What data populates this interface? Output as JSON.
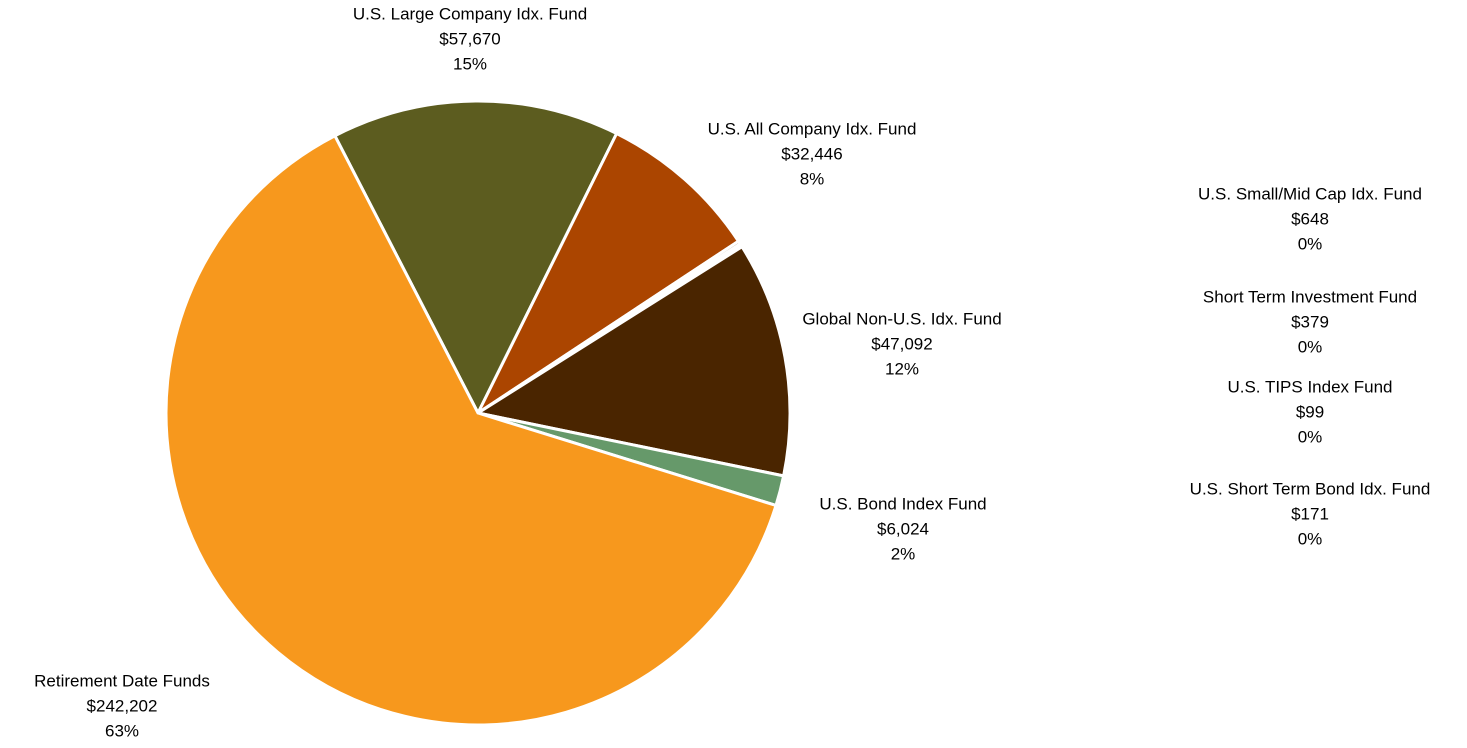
{
  "chart_data": {
    "type": "pie",
    "categories": [
      "U.S. Large Company Idx. Fund",
      "U.S. All Company Idx. Fund",
      "U.S. Small/Mid Cap Idx. Fund",
      "Short Term Investment Fund",
      "U.S. TIPS Index Fund",
      "U.S. Short Term Bond Idx. Fund",
      "Global Non-U.S. Idx. Fund",
      "U.S. Bond Index Fund",
      "Retirement Date Funds"
    ],
    "values": [
      57670,
      32446,
      648,
      379,
      99,
      171,
      47092,
      6024,
      242202
    ],
    "value_labels": [
      "$57,670",
      "$32,446",
      "$648",
      "$379",
      "$99",
      "$171",
      "$47,092",
      "$6,024",
      "$242,202"
    ],
    "percents": [
      15,
      8,
      0,
      0,
      0,
      0,
      12,
      2,
      63
    ],
    "percent_labels": [
      "15%",
      "8%",
      "0%",
      "0%",
      "0%",
      "0%",
      "12%",
      "2%",
      "63%"
    ],
    "colors": [
      "#5c5c1f",
      "#ab4500",
      "#7a5a2a",
      "#8c7a4a",
      "#a08c5c",
      "#6a6a3a",
      "#4a2500",
      "#66996a",
      "#f7981d"
    ]
  }
}
